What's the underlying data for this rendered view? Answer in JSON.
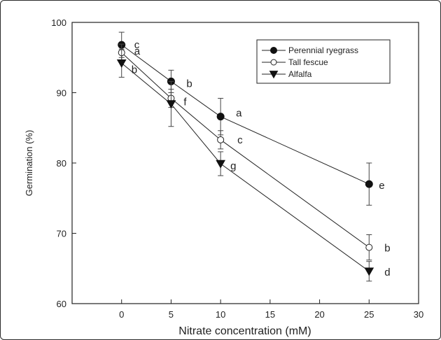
{
  "chart_data": {
    "type": "line",
    "title": "",
    "xlabel": "Nitrate concentration (mM)",
    "ylabel": "Germination (%)",
    "xlim": [
      -5,
      30
    ],
    "ylim": [
      60,
      100
    ],
    "xticks": [
      0,
      5,
      10,
      15,
      20,
      25,
      30
    ],
    "yticks": [
      60,
      70,
      80,
      90,
      100
    ],
    "grid": false,
    "legend_position": "top-right",
    "x": [
      0,
      5,
      10,
      25
    ],
    "series": [
      {
        "name": "Perennial ryegrass",
        "marker": "filled-circle",
        "values": [
          96.8,
          91.6,
          86.6,
          77.0
        ],
        "errors": [
          1.8,
          1.6,
          2.6,
          3.0
        ],
        "letters": [
          "c",
          "b",
          "a",
          "e"
        ]
      },
      {
        "name": "Tall fescue",
        "marker": "open-circle",
        "values": [
          95.7,
          89.2,
          83.3,
          68.0
        ],
        "errors": [
          1.2,
          1.3,
          1.3,
          1.8
        ],
        "letters": [
          "a",
          "f",
          "c",
          "b"
        ]
      },
      {
        "name": "Alfalfa",
        "marker": "filled-triangle-down",
        "values": [
          94.2,
          88.4,
          79.9,
          64.6
        ],
        "errors": [
          2.0,
          3.2,
          1.7,
          1.4
        ],
        "letters": [
          "b",
          "",
          "g",
          "d"
        ]
      }
    ]
  }
}
